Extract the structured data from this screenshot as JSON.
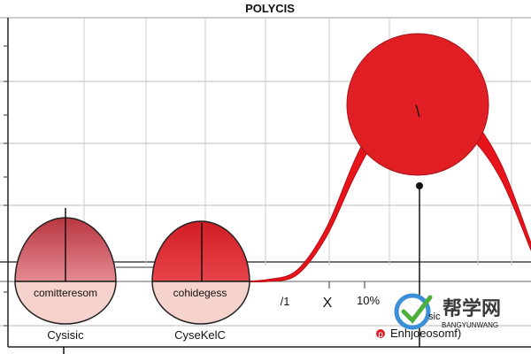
{
  "chart_data": {
    "type": "area",
    "title": "POLYCIS",
    "xlabel": "",
    "ylabel": "",
    "series": [
      {
        "name": "curve",
        "color": "#e8141c",
        "x": [
          0,
          1,
          2,
          3,
          4,
          5,
          6,
          7,
          8,
          9,
          10
        ],
        "values": [
          0.0,
          0.05,
          0.3,
          1.4,
          3.2,
          4.6,
          5.0,
          4.7,
          4.2,
          3.0,
          1.0
        ]
      }
    ],
    "bubbles": [
      {
        "name": "large-circle",
        "color": "#e01e24",
        "glyph": "\\"
      },
      {
        "name": "left-sphere",
        "label": "comitteresom",
        "caption": "Cysisic",
        "color": "#c7474f"
      },
      {
        "name": "middle-sphere",
        "label": "cohidegess",
        "caption": "CyseKelC",
        "color": "#d7262c"
      }
    ],
    "x_tick_labels": [
      "/1",
      "X",
      "10%"
    ],
    "annotation": "Enhjoeosomf)",
    "annotation_marker": "p"
  },
  "watermark": {
    "text": "帮学网",
    "subtext": "BANGYUNWANG",
    "suffix": "sic"
  }
}
